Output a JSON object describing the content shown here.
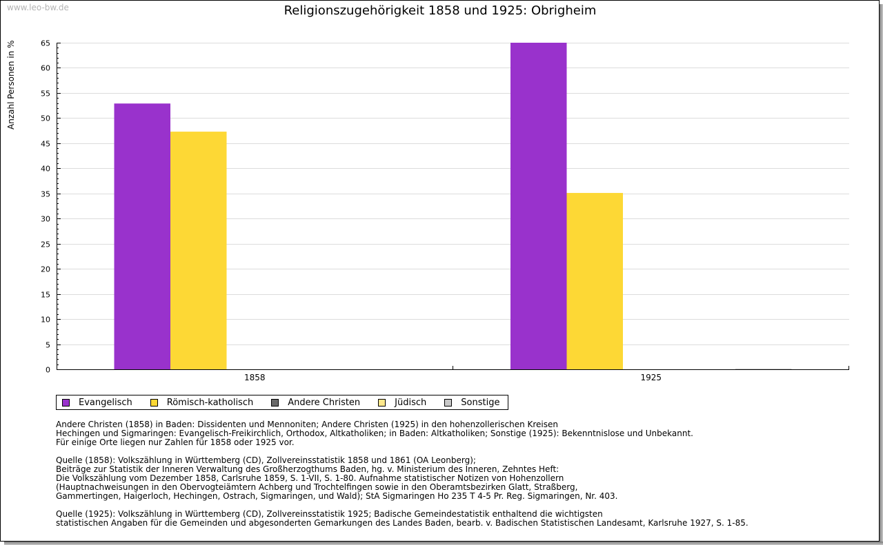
{
  "watermark": "www.leo-bw.de",
  "chart_data": {
    "type": "bar",
    "title": "Religionszugehörigkeit 1858 und 1925: Obrigheim",
    "xlabel": "",
    "ylabel": "Anzahl Personen in %",
    "ylim": [
      0,
      65
    ],
    "yticks": [
      "0",
      "5",
      "10",
      "15",
      "20",
      "25",
      "30",
      "35",
      "40",
      "45",
      "50",
      "55",
      "60",
      "65"
    ],
    "grid": true,
    "legend_position": "bottom",
    "categories": [
      "1858",
      "1925"
    ],
    "series": [
      {
        "name": "Evangelisch",
        "color": "#9932cc",
        "values": [
          52.9,
          65.0
        ]
      },
      {
        "name": "Römisch-katholisch",
        "color": "#fdd835",
        "values": [
          47.3,
          35.1
        ]
      },
      {
        "name": "Andere Christen",
        "color": "#696969",
        "values": [
          0,
          0
        ]
      },
      {
        "name": "Jüdisch",
        "color": "#ffe88c",
        "values": [
          0,
          0
        ]
      },
      {
        "name": "Sonstige",
        "color": "#c8c8c8",
        "values": [
          0,
          0.1
        ]
      }
    ]
  },
  "notes": [
    "Andere Christen (1858) in Baden: Dissidenten und Mennoniten; Andere Christen (1925) in den hohenzollerischen Kreisen\nHechingen und Sigmaringen: Evangelisch-Freikirchlich, Orthodox, Altkatholiken; in Baden: Altkatholiken; Sonstige (1925): Bekenntnislose und Unbekannt.\nFür einige Orte liegen nur Zahlen für 1858 oder 1925 vor.",
    "Quelle (1858): Volkszählung in Württemberg (CD), Zollvereinsstatistik 1858 und 1861 (OA Leonberg);\nBeiträge zur Statistik der Inneren Verwaltung des Großherzogthums Baden, hg. v. Ministerium des Inneren, Zehntes Heft:\nDie Volkszählung vom Dezember 1858, Carlsruhe 1859, S. 1-VII, S. 1-80. Aufnahme statistischer Notizen von Hohenzollern\n(Hauptnachweisungen in den Obervogteiämtern Achberg und Trochtelfingen sowie in den Oberamtsbezirken Glatt, Straßberg,\nGammertingen, Haigerloch, Hechingen, Ostrach, Sigmaringen, und Wald); StA Sigmaringen Ho 235 T 4-5 Pr. Reg. Sigmaringen, Nr. 403.",
    "Quelle (1925): Volkszählung in Württemberg (CD), Zollvereinsstatistik 1925; Badische Gemeindestatistik enthaltend die wichtigsten\nstatistischen Angaben für die Gemeinden und abgesonderten Gemarkungen des Landes Baden, bearb. v. Badischen Statistischen Landesamt, Karlsruhe 1927, S. 1-85."
  ]
}
